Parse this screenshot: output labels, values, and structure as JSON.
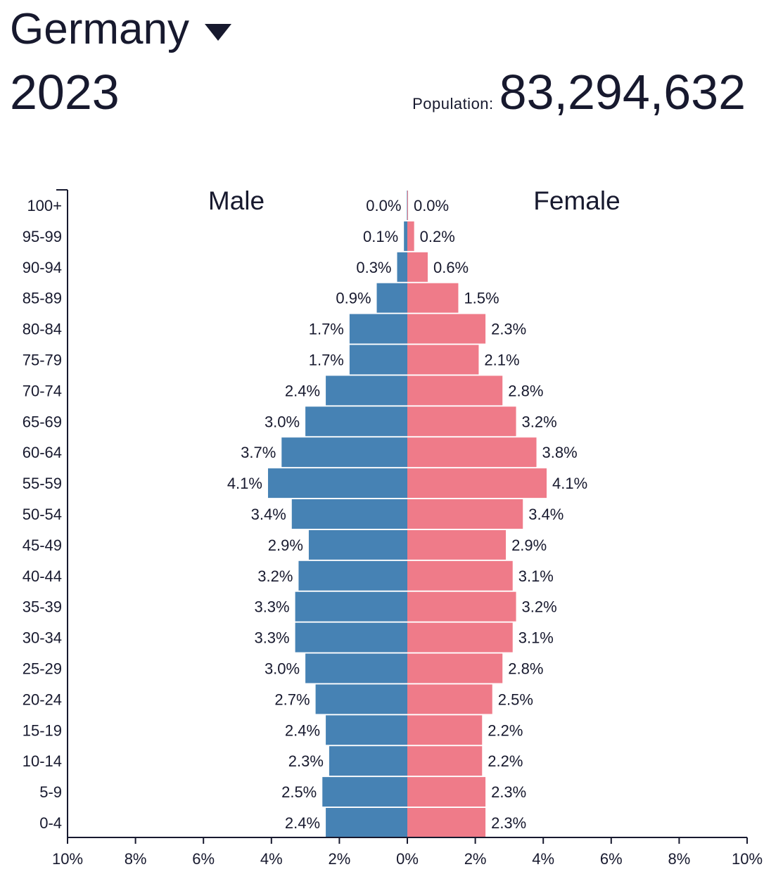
{
  "header": {
    "country": "Germany",
    "year": "2023",
    "population_label": "Population:",
    "population_value": "83,294,632"
  },
  "chart_data": {
    "type": "bar",
    "orientation": "horizontal-pyramid",
    "categories": [
      "100+",
      "95-99",
      "90-94",
      "85-89",
      "80-84",
      "75-79",
      "70-74",
      "65-69",
      "60-64",
      "55-59",
      "50-54",
      "45-49",
      "40-44",
      "35-39",
      "30-34",
      "25-29",
      "20-24",
      "15-19",
      "10-14",
      "5-9",
      "0-4"
    ],
    "series": [
      {
        "name": "Male",
        "color": "#4682b4",
        "values": [
          0.01,
          0.1,
          0.3,
          0.9,
          1.7,
          1.7,
          2.4,
          3.0,
          3.7,
          4.1,
          3.4,
          2.9,
          3.2,
          3.3,
          3.3,
          3.0,
          2.7,
          2.4,
          2.3,
          2.5,
          2.4
        ],
        "labels": [
          "0.0%",
          "0.1%",
          "0.3%",
          "0.9%",
          "1.7%",
          "1.7%",
          "2.4%",
          "3.0%",
          "3.7%",
          "4.1%",
          "3.4%",
          "2.9%",
          "3.2%",
          "3.3%",
          "3.3%",
          "3.0%",
          "2.7%",
          "2.4%",
          "2.3%",
          "2.5%",
          "2.4%"
        ]
      },
      {
        "name": "Female",
        "color": "#ef7b89",
        "values": [
          0.02,
          0.2,
          0.6,
          1.5,
          2.3,
          2.1,
          2.8,
          3.2,
          3.8,
          4.1,
          3.4,
          2.9,
          3.1,
          3.2,
          3.1,
          2.8,
          2.5,
          2.2,
          2.2,
          2.3,
          2.3
        ],
        "labels": [
          "0.0%",
          "0.2%",
          "0.6%",
          "1.5%",
          "2.3%",
          "2.1%",
          "2.8%",
          "3.2%",
          "3.8%",
          "4.1%",
          "3.4%",
          "2.9%",
          "3.1%",
          "3.2%",
          "3.1%",
          "2.8%",
          "2.5%",
          "2.2%",
          "2.2%",
          "2.3%",
          "2.3%"
        ]
      }
    ],
    "xticks": [
      "10%",
      "8%",
      "6%",
      "4%",
      "2%",
      "0%",
      "2%",
      "4%",
      "6%",
      "8%",
      "10%"
    ],
    "xlim": [
      -10,
      10
    ],
    "grid": false
  }
}
